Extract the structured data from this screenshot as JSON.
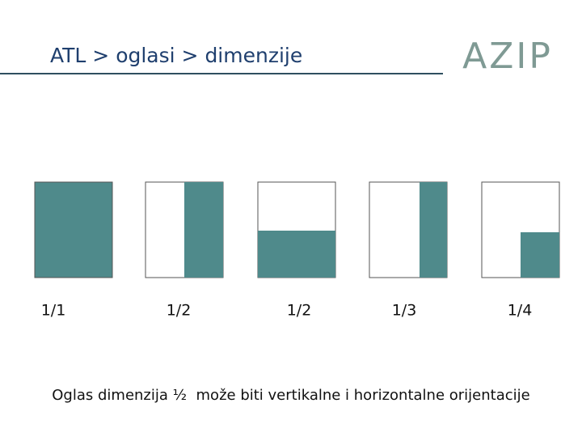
{
  "header": {
    "title": "ATL > oglasi > dimenzije",
    "logo": "AZIP"
  },
  "formats": [
    {
      "label": "1/1"
    },
    {
      "label": "1/2"
    },
    {
      "label": "1/2"
    },
    {
      "label": "1/3"
    },
    {
      "label": "1/4"
    }
  ],
  "caption": "Oglas dimenzija ½  može biti vertikalne i horizontalne orijentacije"
}
